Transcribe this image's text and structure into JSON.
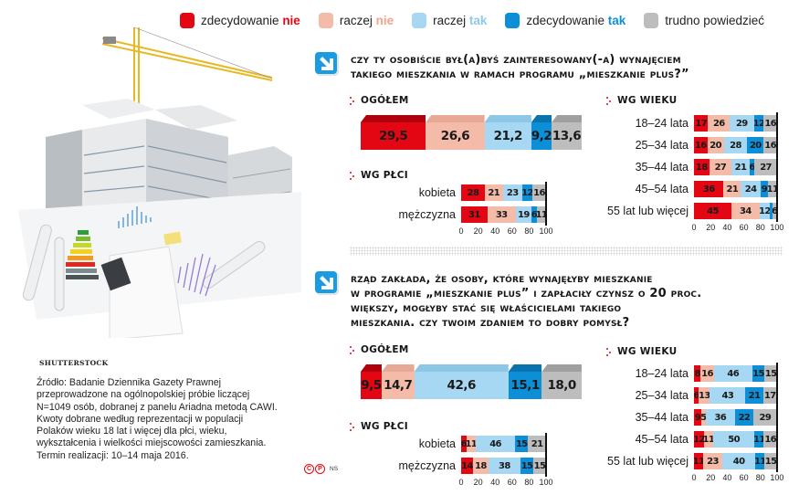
{
  "legend": [
    {
      "prefix": "zdecydowanie ",
      "emph": "nie",
      "color": "#e30613",
      "emph_color": "#e30613"
    },
    {
      "prefix": "raczej ",
      "emph": "nie",
      "color": "#f4bba8",
      "emph_color": "#f2a58b"
    },
    {
      "prefix": "raczej ",
      "emph": "tak",
      "color": "#a6d7f3",
      "emph_color": "#8cc9ec"
    },
    {
      "prefix": "zdecydowanie ",
      "emph": "tak",
      "color": "#0d8fd8",
      "emph_color": "#0d8fd8"
    },
    {
      "prefix": "trudno powiedzieć",
      "emph": "",
      "color": "#bdbdbd",
      "emph_color": "#bdbdbd"
    }
  ],
  "colors": {
    "zdecydowanie_nie": "#e30613",
    "raczej_nie": "#f4bba8",
    "raczej_tak": "#a6d7f3",
    "zdecydowanie_tak": "#0d8fd8",
    "trudno_powiedziec": "#bdbdbd",
    "accent_red": "#e30613",
    "icon_blue": "#1b9be0"
  },
  "illustration": {
    "credit": "SHUTTERSTOCK"
  },
  "source": {
    "lines": [
      "Źródło: Badanie Dziennika Gazety Prawnej",
      "przeprowadzone na ogólnopolskiej próbie liczącej",
      "N=1049 osób, dobranej z panelu Ariadna metodą CAWI.",
      "Kwoty dobrane według reprezentacji w populacji",
      "Polaków wieku 18 lat i więcej dla płci, wieku,",
      "wykształcenia i wielkości miejscowości zamieszkania.",
      "Termin realizacji: 10–14 maja 2016."
    ]
  },
  "logo": {
    "c": "C",
    "p": "P",
    "author": "NS"
  },
  "q1": {
    "title_lines": [
      "Czy ty osobiście był(a)byś zainteresowany(-a) wynajęciem",
      "takiego mieszkania w ramach programu „Mieszkanie plus?”"
    ],
    "overall_label": "OGÓŁEM",
    "gender_label": "WG PŁCI",
    "age_label": "WG WIEKU"
  },
  "q2": {
    "title_lines": [
      "Rząd zakłada, że osoby, które wynajęłyby mieszkanie",
      "w programie „Mieszkanie plus” i zapłaciły czynsz o 20 proc.",
      "większy, mogłyby stać się właścicielami takiego",
      "mieszkania. Czy twoim zdaniem to dobry pomysł?"
    ],
    "overall_label": "OGÓŁEM",
    "gender_label": "WG PŁCI",
    "age_label": "WG WIEKU"
  },
  "axis_ticks": [
    "0",
    "20",
    "40",
    "60",
    "80",
    "100"
  ],
  "chart_data": [
    {
      "type": "bar",
      "stacked": true,
      "orientation": "horizontal",
      "title": "Czy ty osobiście był(a)byś zainteresowany(-a) wynajęciem takiego mieszkania w ramach programu „Mieszkanie plus?” — ogółem",
      "series_names": [
        "zdecydowanie nie",
        "raczej nie",
        "raczej tak",
        "zdecydowanie tak",
        "trudno powiedzieć"
      ],
      "categories": [
        "Ogółem"
      ],
      "values": [
        [
          29.5,
          26.6,
          21.2,
          9.2,
          13.6
        ]
      ],
      "labels": [
        [
          "29,5",
          "26,6",
          "21,2",
          "9,2",
          "13,6"
        ]
      ],
      "xlim": [
        0,
        100
      ]
    },
    {
      "type": "bar",
      "stacked": true,
      "orientation": "horizontal",
      "title": "Q1 — wg płci",
      "series_names": [
        "zdecydowanie nie",
        "raczej nie",
        "raczej tak",
        "zdecydowanie tak",
        "trudno powiedzieć"
      ],
      "categories": [
        "kobieta",
        "mężczyzna"
      ],
      "values": [
        [
          28,
          21,
          23,
          12,
          16
        ],
        [
          31,
          33,
          19,
          6,
          11
        ]
      ],
      "labels": [
        [
          "28",
          "21",
          "23",
          "12",
          "16"
        ],
        [
          "31",
          "33",
          "19",
          "6",
          "11"
        ]
      ],
      "xticks": [
        0,
        20,
        40,
        60,
        80,
        100
      ],
      "xlim": [
        0,
        100
      ]
    },
    {
      "type": "bar",
      "stacked": true,
      "orientation": "horizontal",
      "title": "Q1 — wg wieku",
      "series_names": [
        "zdecydowanie nie",
        "raczej nie",
        "raczej tak",
        "zdecydowanie tak",
        "trudno powiedzieć"
      ],
      "categories": [
        "18–24 lata",
        "25–34 lata",
        "35–44 lata",
        "45–54 lata",
        "55 lat lub więcej"
      ],
      "values": [
        [
          17,
          26,
          29,
          12,
          16
        ],
        [
          16,
          20,
          28,
          20,
          16
        ],
        [
          18,
          27,
          21,
          6,
          27
        ],
        [
          36,
          21,
          24,
          9,
          11
        ],
        [
          45,
          34,
          12,
          3,
          6
        ]
      ],
      "labels": [
        [
          "17",
          "26",
          "29",
          "12",
          "16"
        ],
        [
          "16",
          "20",
          "28",
          "20",
          "16"
        ],
        [
          "18",
          "27",
          "21",
          "6",
          "27"
        ],
        [
          "36",
          "21",
          "24",
          "9",
          "11"
        ],
        [
          "45",
          "34",
          "12",
          "",
          "6"
        ]
      ],
      "xticks": [
        0,
        20,
        40,
        60,
        80,
        100
      ],
      "xlim": [
        0,
        100
      ]
    },
    {
      "type": "bar",
      "stacked": true,
      "orientation": "horizontal",
      "title": "Rząd zakłada, że osoby, które wynajęłyby mieszkanie w programie „Mieszkanie plus” i zapłaciły czynsz o 20 proc. większy, mogłyby stać się właścicielami takiego mieszkania. Czy twoim zdaniem to dobry pomysł? — ogółem",
      "series_names": [
        "zdecydowanie nie",
        "raczej nie",
        "raczej tak",
        "zdecydowanie tak",
        "trudno powiedzieć"
      ],
      "categories": [
        "Ogółem"
      ],
      "values": [
        [
          9.5,
          14.7,
          42.6,
          15.1,
          18.0
        ]
      ],
      "labels": [
        [
          "9,5",
          "14,7",
          "42,6",
          "15,1",
          "18,0"
        ]
      ],
      "xlim": [
        0,
        100
      ]
    },
    {
      "type": "bar",
      "stacked": true,
      "orientation": "horizontal",
      "title": "Q2 — wg płci",
      "series_names": [
        "zdecydowanie nie",
        "raczej nie",
        "raczej tak",
        "zdecydowanie tak",
        "trudno powiedzieć"
      ],
      "categories": [
        "kobieta",
        "mężczyzna"
      ],
      "values": [
        [
          6,
          11,
          46,
          15,
          21
        ],
        [
          14,
          18,
          38,
          15,
          15
        ]
      ],
      "labels": [
        [
          "6",
          "11",
          "46",
          "15",
          "21"
        ],
        [
          "14",
          "18",
          "38",
          "15",
          "15"
        ]
      ],
      "xticks": [
        0,
        20,
        40,
        60,
        80,
        100
      ],
      "xlim": [
        0,
        100
      ]
    },
    {
      "type": "bar",
      "stacked": true,
      "orientation": "horizontal",
      "title": "Q2 — wg wieku",
      "series_names": [
        "zdecydowanie nie",
        "raczej nie",
        "raczej tak",
        "zdecydowanie tak",
        "trudno powiedzieć"
      ],
      "categories": [
        "18–24 lata",
        "25–34 lata",
        "35–44 lata",
        "45–54 lata",
        "55 lat lub więcej"
      ],
      "values": [
        [
          8,
          16,
          46,
          15,
          15
        ],
        [
          6,
          13,
          43,
          21,
          17
        ],
        [
          9,
          5,
          36,
          22,
          29
        ],
        [
          12,
          11,
          50,
          11,
          16
        ],
        [
          11,
          23,
          40,
          11,
          15
        ]
      ],
      "labels": [
        [
          "8",
          "16",
          "46",
          "15",
          "15"
        ],
        [
          "6",
          "13",
          "43",
          "21",
          "17"
        ],
        [
          "9",
          "5",
          "36",
          "22",
          "29"
        ],
        [
          "12",
          "11",
          "50",
          "11",
          "16"
        ],
        [
          "11",
          "23",
          "40",
          "11",
          "15"
        ]
      ],
      "xticks": [
        0,
        20,
        40,
        60,
        80,
        100
      ],
      "xlim": [
        0,
        100
      ]
    }
  ]
}
